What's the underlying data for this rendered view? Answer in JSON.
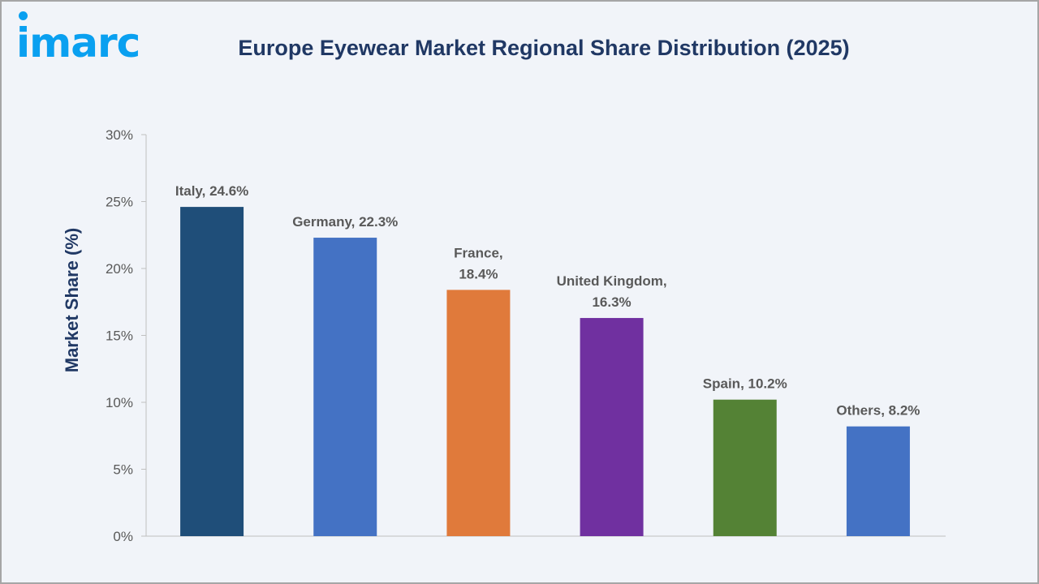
{
  "logo": "imarc",
  "chart_data": {
    "type": "bar",
    "title": "Europe Eyewear Market Regional Share Distribution (2025)",
    "ylabel": "Market Share (%)",
    "xlabel": "",
    "ylim": [
      0,
      30
    ],
    "yticks": [
      "0%",
      "5%",
      "10%",
      "15%",
      "20%",
      "25%",
      "30%"
    ],
    "categories": [
      "Italy",
      "Germany",
      "France",
      "United Kingdom",
      "Spain",
      "Others"
    ],
    "values": [
      24.6,
      22.3,
      18.4,
      16.3,
      10.2,
      8.2
    ],
    "data_labels": [
      [
        "Italy, 24.6%"
      ],
      [
        "Germany, 22.3%"
      ],
      [
        "France,",
        "18.4%"
      ],
      [
        "United Kingdom,",
        "16.3%"
      ],
      [
        "Spain, 10.2%"
      ],
      [
        "Others, 8.2%"
      ]
    ],
    "colors": [
      "#1f4e79",
      "#4472c4",
      "#e07a3b",
      "#7030a0",
      "#548235",
      "#4472c4"
    ],
    "grid": false,
    "legend": "none"
  }
}
